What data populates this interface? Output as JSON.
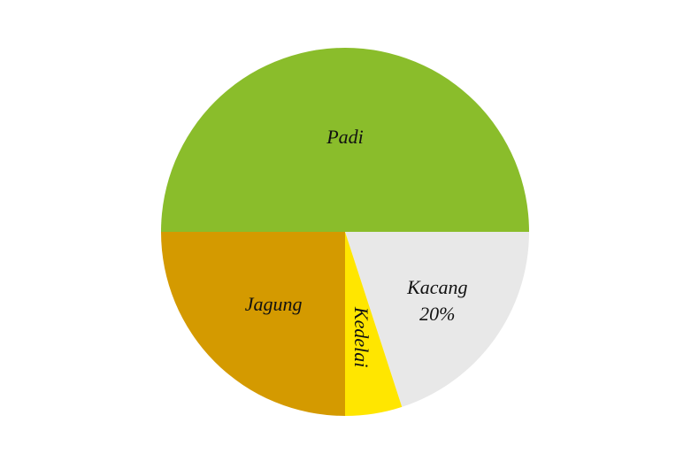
{
  "chart_data": {
    "type": "pie",
    "title": "",
    "slices": [
      {
        "label": "Padi",
        "value": 50,
        "value_label": "",
        "color": "#8ABD2B"
      },
      {
        "label": "Kacang",
        "value": 20,
        "value_label": "20%",
        "color": "#E8E8E8"
      },
      {
        "label": "Kedelai",
        "value": 5,
        "value_label": "",
        "color": "#FFE600"
      },
      {
        "label": "Jagung",
        "value": 25,
        "value_label": "",
        "color": "#D49A00"
      }
    ],
    "legend": "none"
  }
}
